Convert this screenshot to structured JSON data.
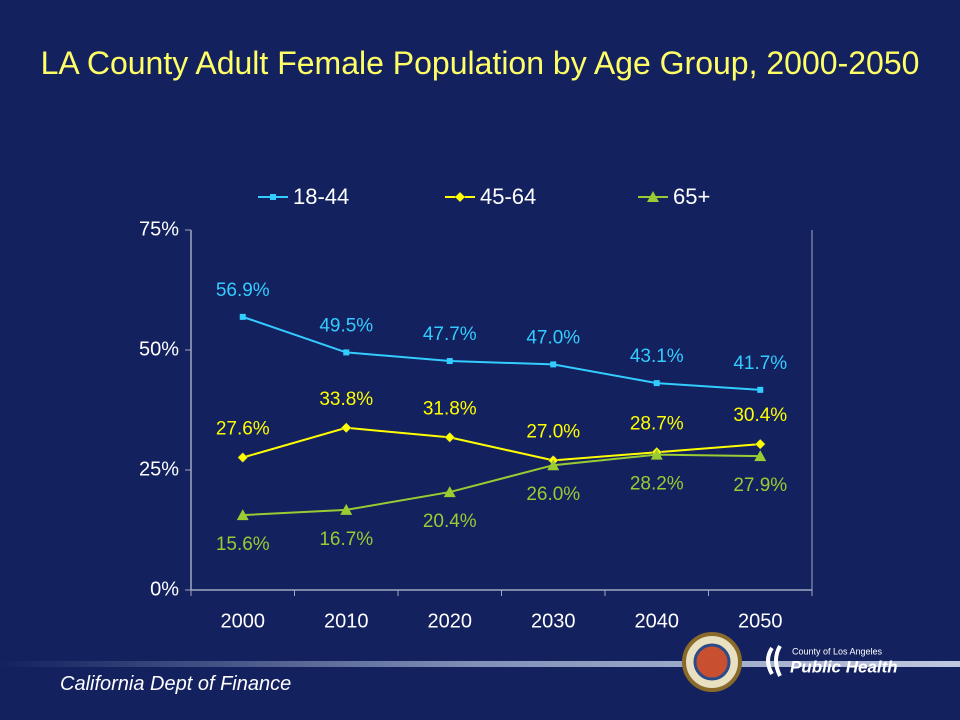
{
  "chart_data": {
    "type": "line",
    "title": "LA County Adult Female Population by Age Group, 2000-2050",
    "categories": [
      "2000",
      "2010",
      "2020",
      "2030",
      "2040",
      "2050"
    ],
    "series": [
      {
        "name": "18-44",
        "color": "#33ccff",
        "marker": "square",
        "values": [
          56.9,
          49.5,
          47.7,
          47.0,
          43.1,
          41.7
        ],
        "value_labels": [
          "56.9%",
          "49.5%",
          "47.7%",
          "47.0%",
          "43.1%",
          "41.7%"
        ]
      },
      {
        "name": "45-64",
        "color": "#ffff00",
        "marker": "diamond",
        "values": [
          27.6,
          33.8,
          31.8,
          27.0,
          28.7,
          30.4
        ],
        "value_labels": [
          "27.6%",
          "33.8%",
          "31.8%",
          "27.0%",
          "28.7%",
          "30.4%"
        ]
      },
      {
        "name": "65+",
        "color": "#99cc33",
        "marker": "triangle",
        "values": [
          15.6,
          16.7,
          20.4,
          26.0,
          28.2,
          27.9
        ],
        "value_labels": [
          "15.6%",
          "16.7%",
          "20.4%",
          "26.0%",
          "28.2%",
          "27.9%"
        ]
      }
    ],
    "ylim": [
      0,
      75
    ],
    "yticks": [
      {
        "value": 0,
        "label": "0%"
      },
      {
        "value": 25,
        "label": "25%"
      },
      {
        "value": 50,
        "label": "50%"
      },
      {
        "value": 75,
        "label": "75%"
      }
    ],
    "legend": "top",
    "source": "California Dept of Finance"
  },
  "footer": {
    "logo_text": [
      "County of Los Angeles",
      "Public Health"
    ]
  }
}
